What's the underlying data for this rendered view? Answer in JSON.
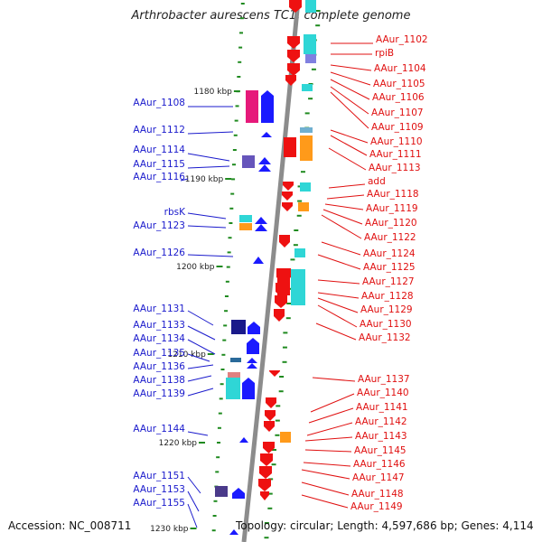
{
  "header": {
    "title": "Arthrobacter aurescens TC1, complete genome"
  },
  "footer": {
    "accession": "Accession: NC_008711",
    "topology": "Topology: circular; Length: 4,597,686 bp; Genes: 4,114"
  },
  "colors": {
    "left_label": "#1a1acc",
    "right_label": "#e01010",
    "forward_gene": "#1a1aff",
    "reverse_gene": "#ee1111",
    "backbone": "#8c8c8c",
    "tick": "#1f8a1f"
  },
  "kbp_markers": [
    "1180 kbp",
    "1190 kbp",
    "1200 kbp",
    "1210 kbp",
    "1220 kbp",
    "1230 kbp"
  ],
  "left_labels": [
    "AAur_1108",
    "AAur_1112",
    "AAur_1114",
    "AAur_1115",
    "AAur_1116",
    "rbsK",
    "AAur_1123",
    "AAur_1126",
    "AAur_1131",
    "AAur_1133",
    "AAur_1134",
    "AAur_1135",
    "AAur_1136",
    "AAur_1138",
    "AAur_1139",
    "AAur_1144",
    "AAur_1151",
    "AAur_1153",
    "AAur_1155"
  ],
  "right_labels": [
    "AAur_1102",
    "rpiB",
    "AAur_1104",
    "AAur_1105",
    "AAur_1106",
    "AAur_1107",
    "AAur_1109",
    "AAur_1110",
    "AAur_1111",
    "AAur_1113",
    "add",
    "AAur_1118",
    "AAur_1119",
    "AAur_1120",
    "AAur_1122",
    "AAur_1124",
    "AAur_1125",
    "AAur_1127",
    "AAur_1128",
    "AAur_1129",
    "AAur_1130",
    "AAur_1132",
    "AAur_1137",
    "AAur_1140",
    "AAur_1141",
    "AAur_1142",
    "AAur_1143",
    "AAur_1145",
    "AAur_1146",
    "AAur_1147",
    "AAur_1148",
    "AAur_1149"
  ]
}
